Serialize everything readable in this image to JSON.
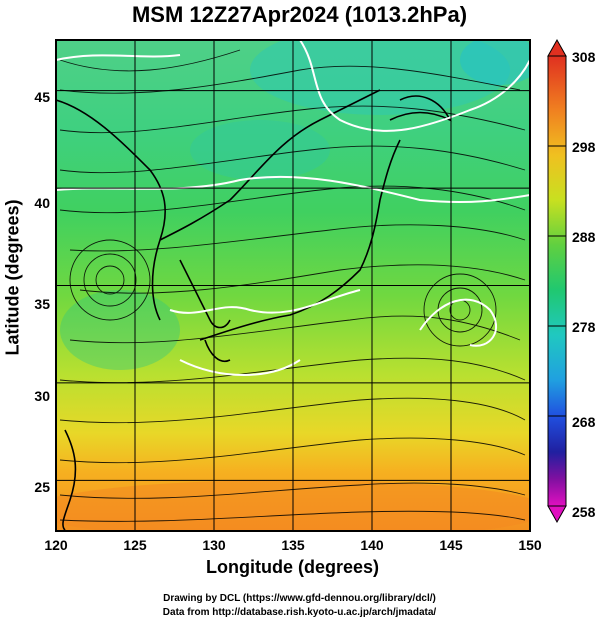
{
  "title": "MSM 12Z27Apr2024 (1013.2hPa)",
  "x_axis": {
    "label": "Longitude (degrees)",
    "ticks": [
      "120",
      "125",
      "130",
      "135",
      "140",
      "145",
      "150"
    ],
    "range": [
      120,
      150
    ]
  },
  "y_axis": {
    "label": "Latitude  (degrees)",
    "ticks": [
      "25",
      "30",
      "35",
      "40",
      "45"
    ],
    "range": [
      22.4,
      47.6
    ]
  },
  "colorbar": {
    "ticks": [
      "308",
      "298",
      "288",
      "278",
      "268",
      "258"
    ],
    "range": [
      258,
      308
    ]
  },
  "credits": {
    "line1": "Drawing by DCL (https://www.gfd-dennou.org/library/dcl/)",
    "line2": "Data from http://database.rish.kyoto-u.ac.jp/arch/jmadata/"
  },
  "colors": {
    "background_warm": "#f4a020",
    "background_mid": "#a8e030",
    "background_cool": "#30d070",
    "coast": "#000000",
    "isotherm": "#ffffff"
  }
}
